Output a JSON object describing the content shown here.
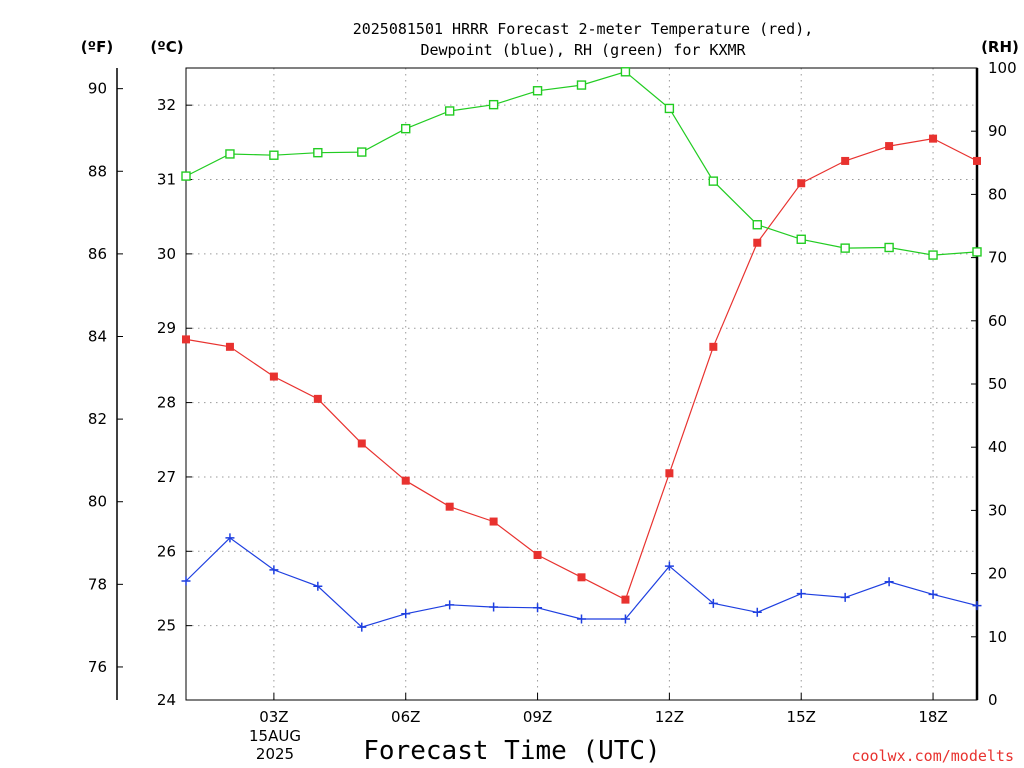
{
  "chart_data": {
    "type": "line",
    "title_line1": "2025081501 HRRR Forecast 2-meter Temperature (red),",
    "title_line2": "Dewpoint (blue), RH (green) for KXMR",
    "xlabel": "Forecast Time (UTC)",
    "x_date_label": [
      "15AUG",
      "2025"
    ],
    "credit": "coolwx.com/modelts",
    "axes": {
      "fahrenheit": {
        "label": "(ºF)",
        "ticks": [
          76,
          78,
          80,
          82,
          84,
          86,
          88,
          90
        ]
      },
      "celsius": {
        "label": "(ºC)",
        "range": [
          24,
          32.5
        ],
        "ticks": [
          24,
          25,
          26,
          27,
          28,
          29,
          30,
          31,
          32
        ]
      },
      "rh": {
        "label": "(RH)",
        "range": [
          0,
          100
        ],
        "ticks": [
          0,
          10,
          20,
          30,
          40,
          50,
          60,
          70,
          80,
          90,
          100
        ]
      }
    },
    "x": {
      "range_hours": [
        1,
        19
      ],
      "tick_hours": [
        3,
        6,
        9,
        12,
        15,
        18
      ],
      "tick_labels": [
        "03Z",
        "06Z",
        "09Z",
        "12Z",
        "15Z",
        "18Z"
      ]
    },
    "grid": true,
    "series": [
      {
        "name": "Temperature",
        "color": "#e8322f",
        "axis": "celsius",
        "marker": "filled-square",
        "x": [
          1,
          2,
          3,
          4,
          5,
          6,
          7,
          8,
          9,
          10,
          11,
          12,
          13,
          14,
          15,
          16,
          17,
          18,
          19
        ],
        "values": [
          28.85,
          28.75,
          28.35,
          28.05,
          27.45,
          26.95,
          26.6,
          26.4,
          25.95,
          25.65,
          25.35,
          27.05,
          28.75,
          30.15,
          30.95,
          31.25,
          31.45,
          31.55,
          31.25
        ]
      },
      {
        "name": "Dewpoint",
        "color": "#1e3fe0",
        "axis": "celsius",
        "marker": "plus",
        "x": [
          1,
          2,
          3,
          4,
          5,
          6,
          7,
          8,
          9,
          10,
          11,
          12,
          13,
          14,
          15,
          16,
          17,
          18,
          19
        ],
        "values": [
          25.6,
          26.18,
          25.75,
          25.53,
          24.98,
          25.16,
          25.28,
          25.25,
          25.24,
          25.09,
          25.09,
          25.8,
          25.3,
          25.18,
          25.43,
          25.38,
          25.59,
          25.42,
          25.27
        ]
      },
      {
        "name": "RH",
        "color": "#22cc22",
        "axis": "rh",
        "marker": "open-square",
        "x": [
          1,
          2,
          3,
          4,
          5,
          6,
          7,
          8,
          9,
          10,
          11,
          12,
          13,
          14,
          15,
          16,
          17,
          18,
          19
        ],
        "values": [
          82.9,
          86.4,
          86.2,
          86.6,
          86.7,
          90.4,
          93.2,
          94.2,
          96.4,
          97.3,
          99.4,
          93.6,
          82.1,
          75.2,
          72.9,
          71.5,
          71.6,
          70.4,
          70.9
        ]
      }
    ]
  }
}
